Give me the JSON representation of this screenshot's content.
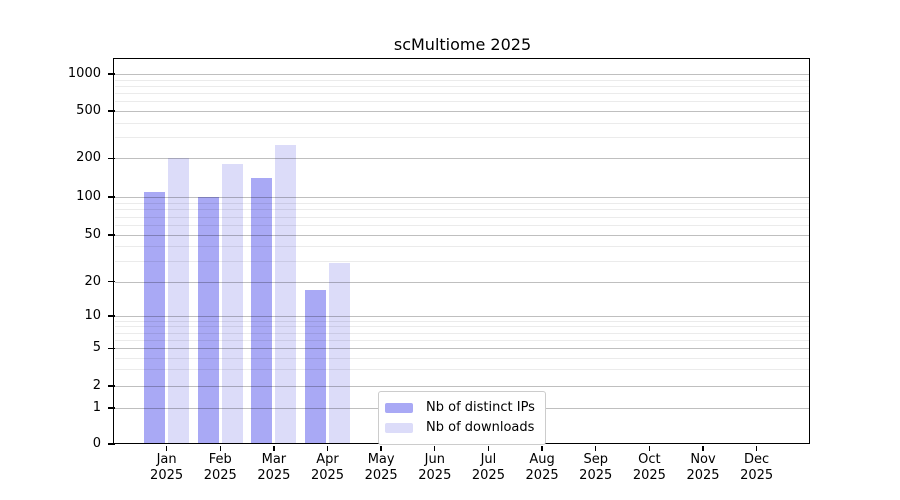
{
  "page": {
    "background": "#ffffff"
  },
  "chart": {
    "title": "scMultiome 2025",
    "colors": {
      "ips_bar": "#a9a9f5",
      "downloads_bar": "#dcdcf9",
      "grid_major": "#c0c0c0",
      "grid_minor": "#ececec",
      "spine": "#000000",
      "text": "#000000",
      "legend_border": "#cccccc"
    }
  },
  "legend": {
    "items": [
      {
        "label": "Nb of distinct IPs",
        "color_key": "ips_bar"
      },
      {
        "label": "Nb of downloads",
        "color_key": "downloads_bar"
      }
    ]
  },
  "chart_data": {
    "type": "bar",
    "title": "scMultiome 2025",
    "categories": [
      "Jan 2025",
      "Feb 2025",
      "Mar 2025",
      "Apr 2025",
      "May 2025",
      "Jun 2025",
      "Jul 2025",
      "Aug 2025",
      "Sep 2025",
      "Oct 2025",
      "Nov 2025",
      "Dec 2025"
    ],
    "series": [
      {
        "name": "Nb of distinct IPs",
        "values": [
          110,
          100,
          140,
          17,
          0,
          0,
          0,
          0,
          0,
          0,
          0,
          0
        ]
      },
      {
        "name": "Nb of downloads",
        "values": [
          200,
          180,
          260,
          29,
          0,
          0,
          0,
          0,
          0,
          0,
          0,
          0
        ]
      }
    ],
    "xlabel": "",
    "ylabel": "",
    "y_ticks": [
      0,
      1,
      2,
      5,
      10,
      20,
      50,
      100,
      200,
      500,
      1000
    ],
    "y_minor_gridlines": [
      3,
      4,
      6,
      7,
      8,
      9,
      30,
      40,
      60,
      70,
      80,
      90,
      300,
      400,
      600,
      700,
      800,
      900
    ],
    "y_scale": "symlog (linear 0-1, log above 1)",
    "ylim": [
      0,
      1300
    ],
    "grid": "horizontal major+minor, drawn over bars",
    "legend_position": "inside lower center"
  }
}
